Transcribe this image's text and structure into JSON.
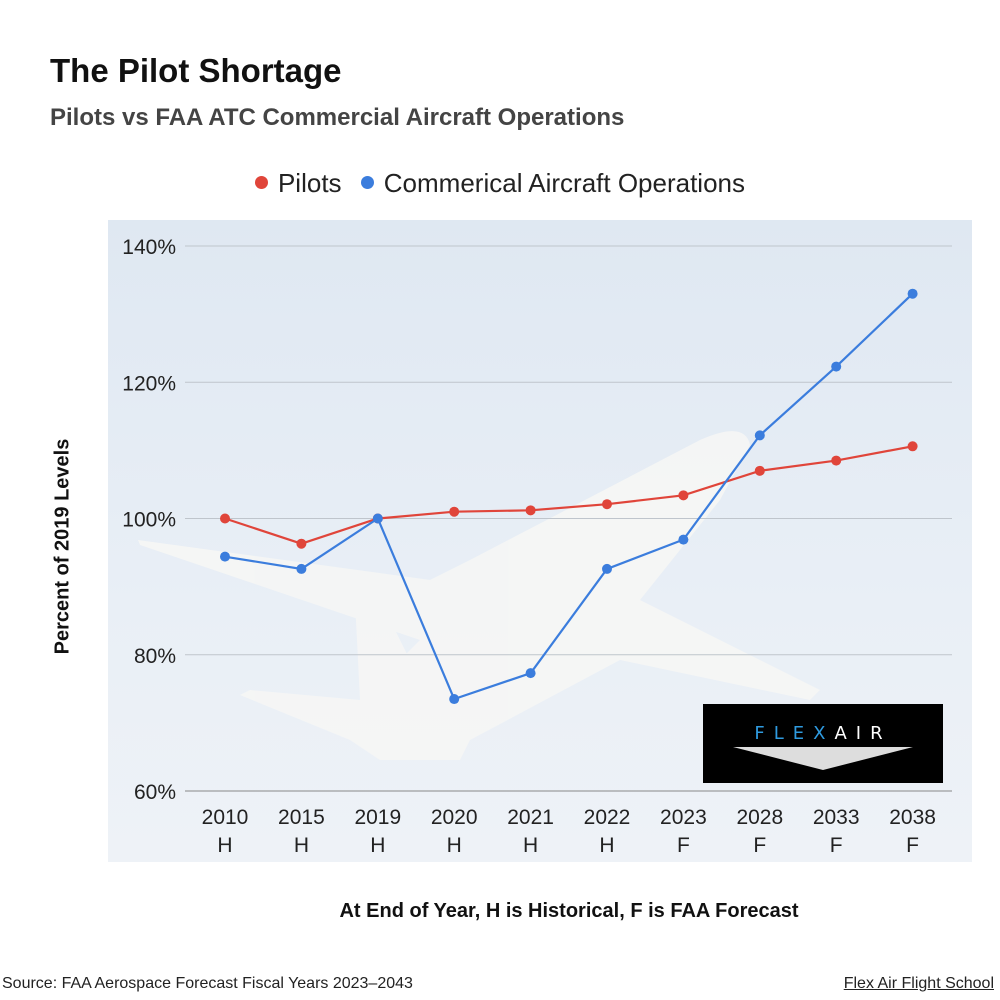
{
  "title": "The Pilot Shortage",
  "subtitle": "Pilots vs FAA ATC Commercial Aircraft Operations",
  "footer": {
    "source": "Source: FAA Aerospace Forecast Fiscal Years 2023–2043",
    "brand_link": "Flex Air Flight School"
  },
  "logo": {
    "text_flex": "FLEX",
    "text_air": "AIR"
  },
  "chart_data": {
    "type": "line",
    "title": "The Pilot Shortage",
    "subtitle": "Pilots vs FAA ATC Commercial Aircraft Operations",
    "xlabel": "At End of Year, H is Historical, F is FAA Forecast",
    "ylabel": "Percent of 2019 Levels",
    "categories": [
      "2010",
      "2015",
      "2019",
      "2020",
      "2021",
      "2022",
      "2023",
      "2028",
      "2033",
      "2038"
    ],
    "category_sublabels": [
      "H",
      "H",
      "H",
      "H",
      "H",
      "H",
      "F",
      "F",
      "F",
      "F"
    ],
    "yticks": [
      "60%",
      "80%",
      "100%",
      "120%",
      "140%"
    ],
    "ylim": [
      60,
      140
    ],
    "grid": true,
    "legend_position": "top",
    "series": [
      {
        "name": "Pilots",
        "color": "#e0453a",
        "values": [
          100,
          96.3,
          100,
          101,
          101.2,
          102.1,
          103.4,
          107,
          108.5,
          110.6
        ]
      },
      {
        "name": "Commerical Aircraft Operations",
        "color": "#3b7ddd",
        "values": [
          94.4,
          92.6,
          100,
          73.5,
          77.3,
          92.6,
          96.9,
          112.2,
          122.3,
          133
        ]
      }
    ]
  }
}
